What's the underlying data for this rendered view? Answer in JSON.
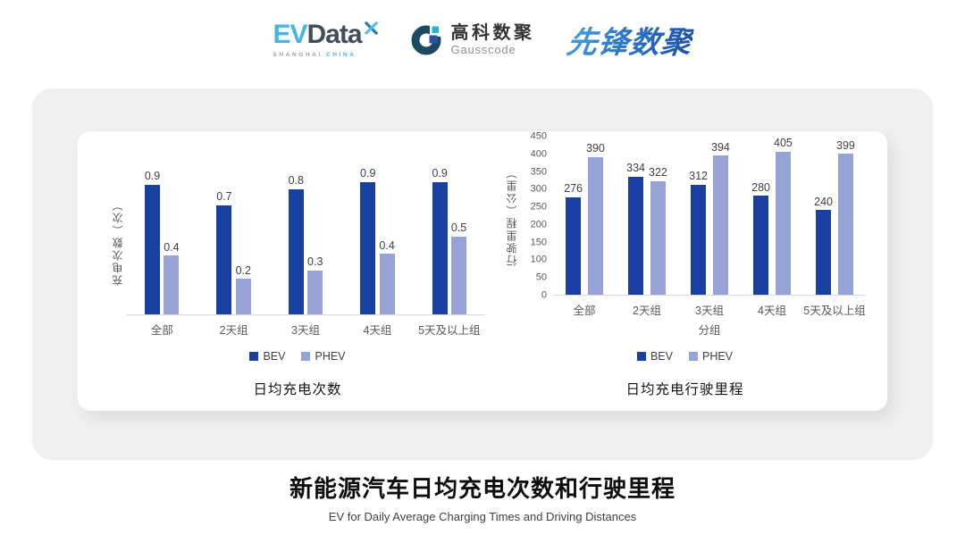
{
  "header": {
    "evdata_logo": {
      "ev": "EV",
      "data": "Data",
      "sub_gray": "SHANGHAI",
      "sub_blue": "CHINA"
    },
    "gausscode_logo": {
      "cn": "高科数聚",
      "en": "Gausscode"
    },
    "xianfeng_logo": {
      "text": "先锋数聚"
    }
  },
  "colors": {
    "bev": "#1a3fa3",
    "phev": "#98a3d5",
    "evdata_blue": "#45b4e6",
    "evdata_dark": "#414d59",
    "evdata_mark_light": "#56bde8",
    "evdata_mark_dark": "#2a74c0",
    "gausscode_ring": "#1d4a63",
    "gausscode_cyan": "#25b7cd",
    "gausscode_blue": "#2b52a8",
    "xianfeng_gradient_start": "#47a0dd",
    "xianfeng_gradient_end": "#1b50ad",
    "panel_bg": "#f0f0f1",
    "axis_text": "#595959",
    "label_text": "#404040"
  },
  "footer": {
    "title": "新能源汽车日均充电次数和行驶里程",
    "subtitle": "EV for Daily Average Charging Times and Driving Distances"
  },
  "chart_data": [
    {
      "id": "daily-charging-times",
      "type": "bar",
      "title": "日均充电次数",
      "ylabel": "充电次数（次）",
      "xlabel": null,
      "categories": [
        "全部",
        "2天组",
        "3天组",
        "4天组",
        "5天及以上组"
      ],
      "series": [
        {
          "name": "BEV",
          "color": "#1a3fa3",
          "values": [
            0.9,
            0.7,
            0.8,
            0.9,
            0.9
          ],
          "render_values": [
            0.88,
            0.74,
            0.85,
            0.93,
            0.95
          ]
        },
        {
          "name": "PHEV",
          "color": "#98a3d5",
          "values": [
            0.4,
            0.2,
            0.3,
            0.4,
            0.5
          ],
          "render_values": [
            0.4,
            0.24,
            0.3,
            0.41,
            0.53
          ]
        }
      ],
      "ylim": [
        0,
        1
      ],
      "y_ticks": null,
      "grid": false,
      "legend_position": "bottom"
    },
    {
      "id": "daily-driving-distance",
      "type": "bar",
      "title": "日均充电行驶里程",
      "ylabel": "行驶里程（公里）",
      "xlabel": "分组",
      "categories": [
        "全部",
        "2天组",
        "3天组",
        "4天组",
        "5天及以上组"
      ],
      "series": [
        {
          "name": "BEV",
          "color": "#1a3fa3",
          "values": [
            276,
            334,
            312,
            280,
            240
          ]
        },
        {
          "name": "PHEV",
          "color": "#98a3d5",
          "values": [
            390,
            322,
            394,
            405,
            399
          ]
        }
      ],
      "ylim": [
        0,
        450
      ],
      "y_ticks": [
        0,
        50,
        100,
        150,
        200,
        250,
        300,
        350,
        400,
        450
      ],
      "grid": false,
      "legend_position": "bottom"
    }
  ]
}
